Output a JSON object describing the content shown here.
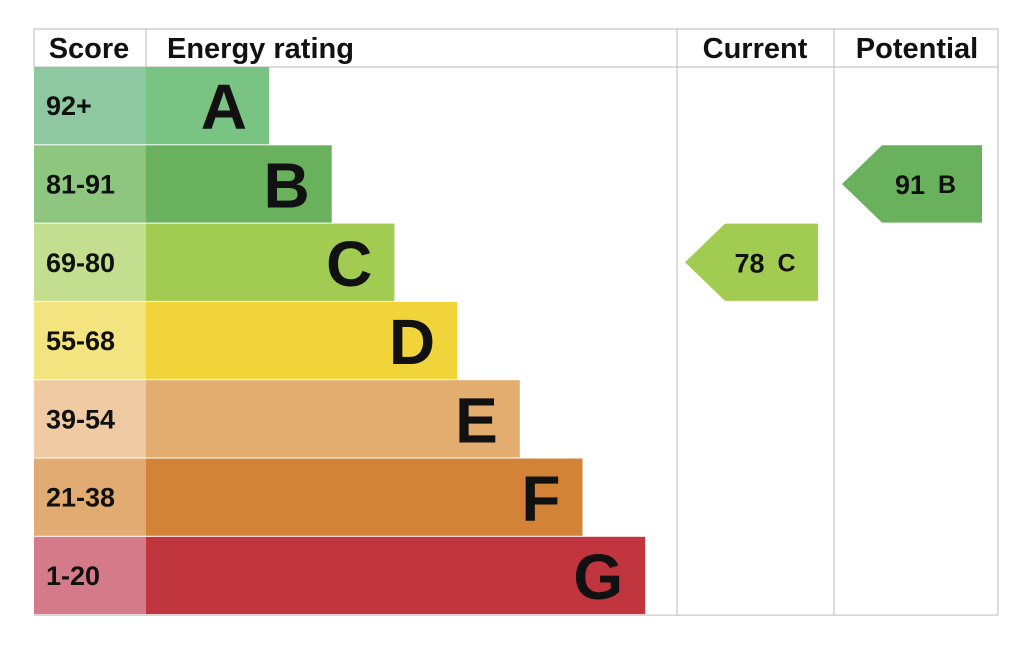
{
  "headers": {
    "score": "Score",
    "energy_rating": "Energy rating",
    "current": "Current",
    "potential": "Potential"
  },
  "chart_data": {
    "type": "bar",
    "title": "",
    "bands": [
      {
        "letter": "A",
        "range": "92+",
        "min_score": 92,
        "bar_color": "#79c383",
        "score_color": "#8dc8a0"
      },
      {
        "letter": "B",
        "range": "81-91",
        "min_score": 81,
        "bar_color": "#69b15d",
        "score_color": "#8fc67f"
      },
      {
        "letter": "C",
        "range": "69-80",
        "min_score": 69,
        "bar_color": "#a2cb52",
        "score_color": "#c2de8e"
      },
      {
        "letter": "D",
        "range": "55-68",
        "min_score": 55,
        "bar_color": "#f0d43a",
        "score_color": "#f4e47f"
      },
      {
        "letter": "E",
        "range": "39-54",
        "min_score": 39,
        "bar_color": "#e4ad70",
        "score_color": "#efcaa2"
      },
      {
        "letter": "F",
        "range": "21-38",
        "min_score": 21,
        "bar_color": "#d38336",
        "score_color": "#e2ab72"
      },
      {
        "letter": "G",
        "range": "1-20",
        "min_score": 1,
        "bar_color": "#c1353f",
        "score_color": "#d57a89"
      }
    ],
    "current": {
      "value": 78,
      "band": "C",
      "value_label": "78",
      "band_label": "C",
      "color": "#a2cb52"
    },
    "potential": {
      "value": 91,
      "band": "B",
      "value_label": "91",
      "band_label": "B",
      "color": "#69b15d"
    }
  }
}
